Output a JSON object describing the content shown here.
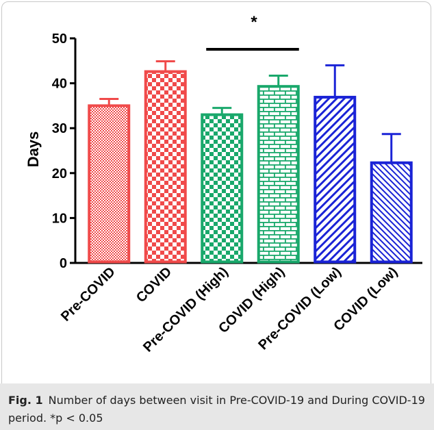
{
  "chart_data": {
    "type": "bar",
    "categories": [
      "Pre-COVID",
      "COVID",
      "Pre-COVID (High)",
      "COVID (High)",
      "Pre-COVID (Low)",
      "COVID (Low)"
    ],
    "values": [
      35,
      42.6,
      33,
      39.3,
      36.9,
      22.3
    ],
    "errors": [
      1.5,
      2.3,
      1.5,
      2.4,
      7.1,
      6.4
    ],
    "colors": [
      "#f04a4a",
      "#f04a4a",
      "#19a86b",
      "#19a86b",
      "#1a23d6",
      "#1a23d6"
    ],
    "patterns": [
      "pattern-fine",
      "pattern-check",
      "pattern-check",
      "pattern-brick",
      "pattern-hatch-wide",
      "pattern-hatch-narrow"
    ],
    "ylabel": "Days",
    "ylim": [
      0,
      50
    ],
    "yticks": [
      0,
      10,
      20,
      30,
      40,
      50
    ],
    "grid": false,
    "annotations": [
      {
        "text": "*",
        "between": [
          "Pre-COVID (High)",
          "COVID (High)"
        ]
      }
    ]
  },
  "caption": {
    "label": "Fig. 1",
    "text": "Number of days between visit in Pre-COVID-19 and During COVID-19 period. *p < 0.05"
  }
}
